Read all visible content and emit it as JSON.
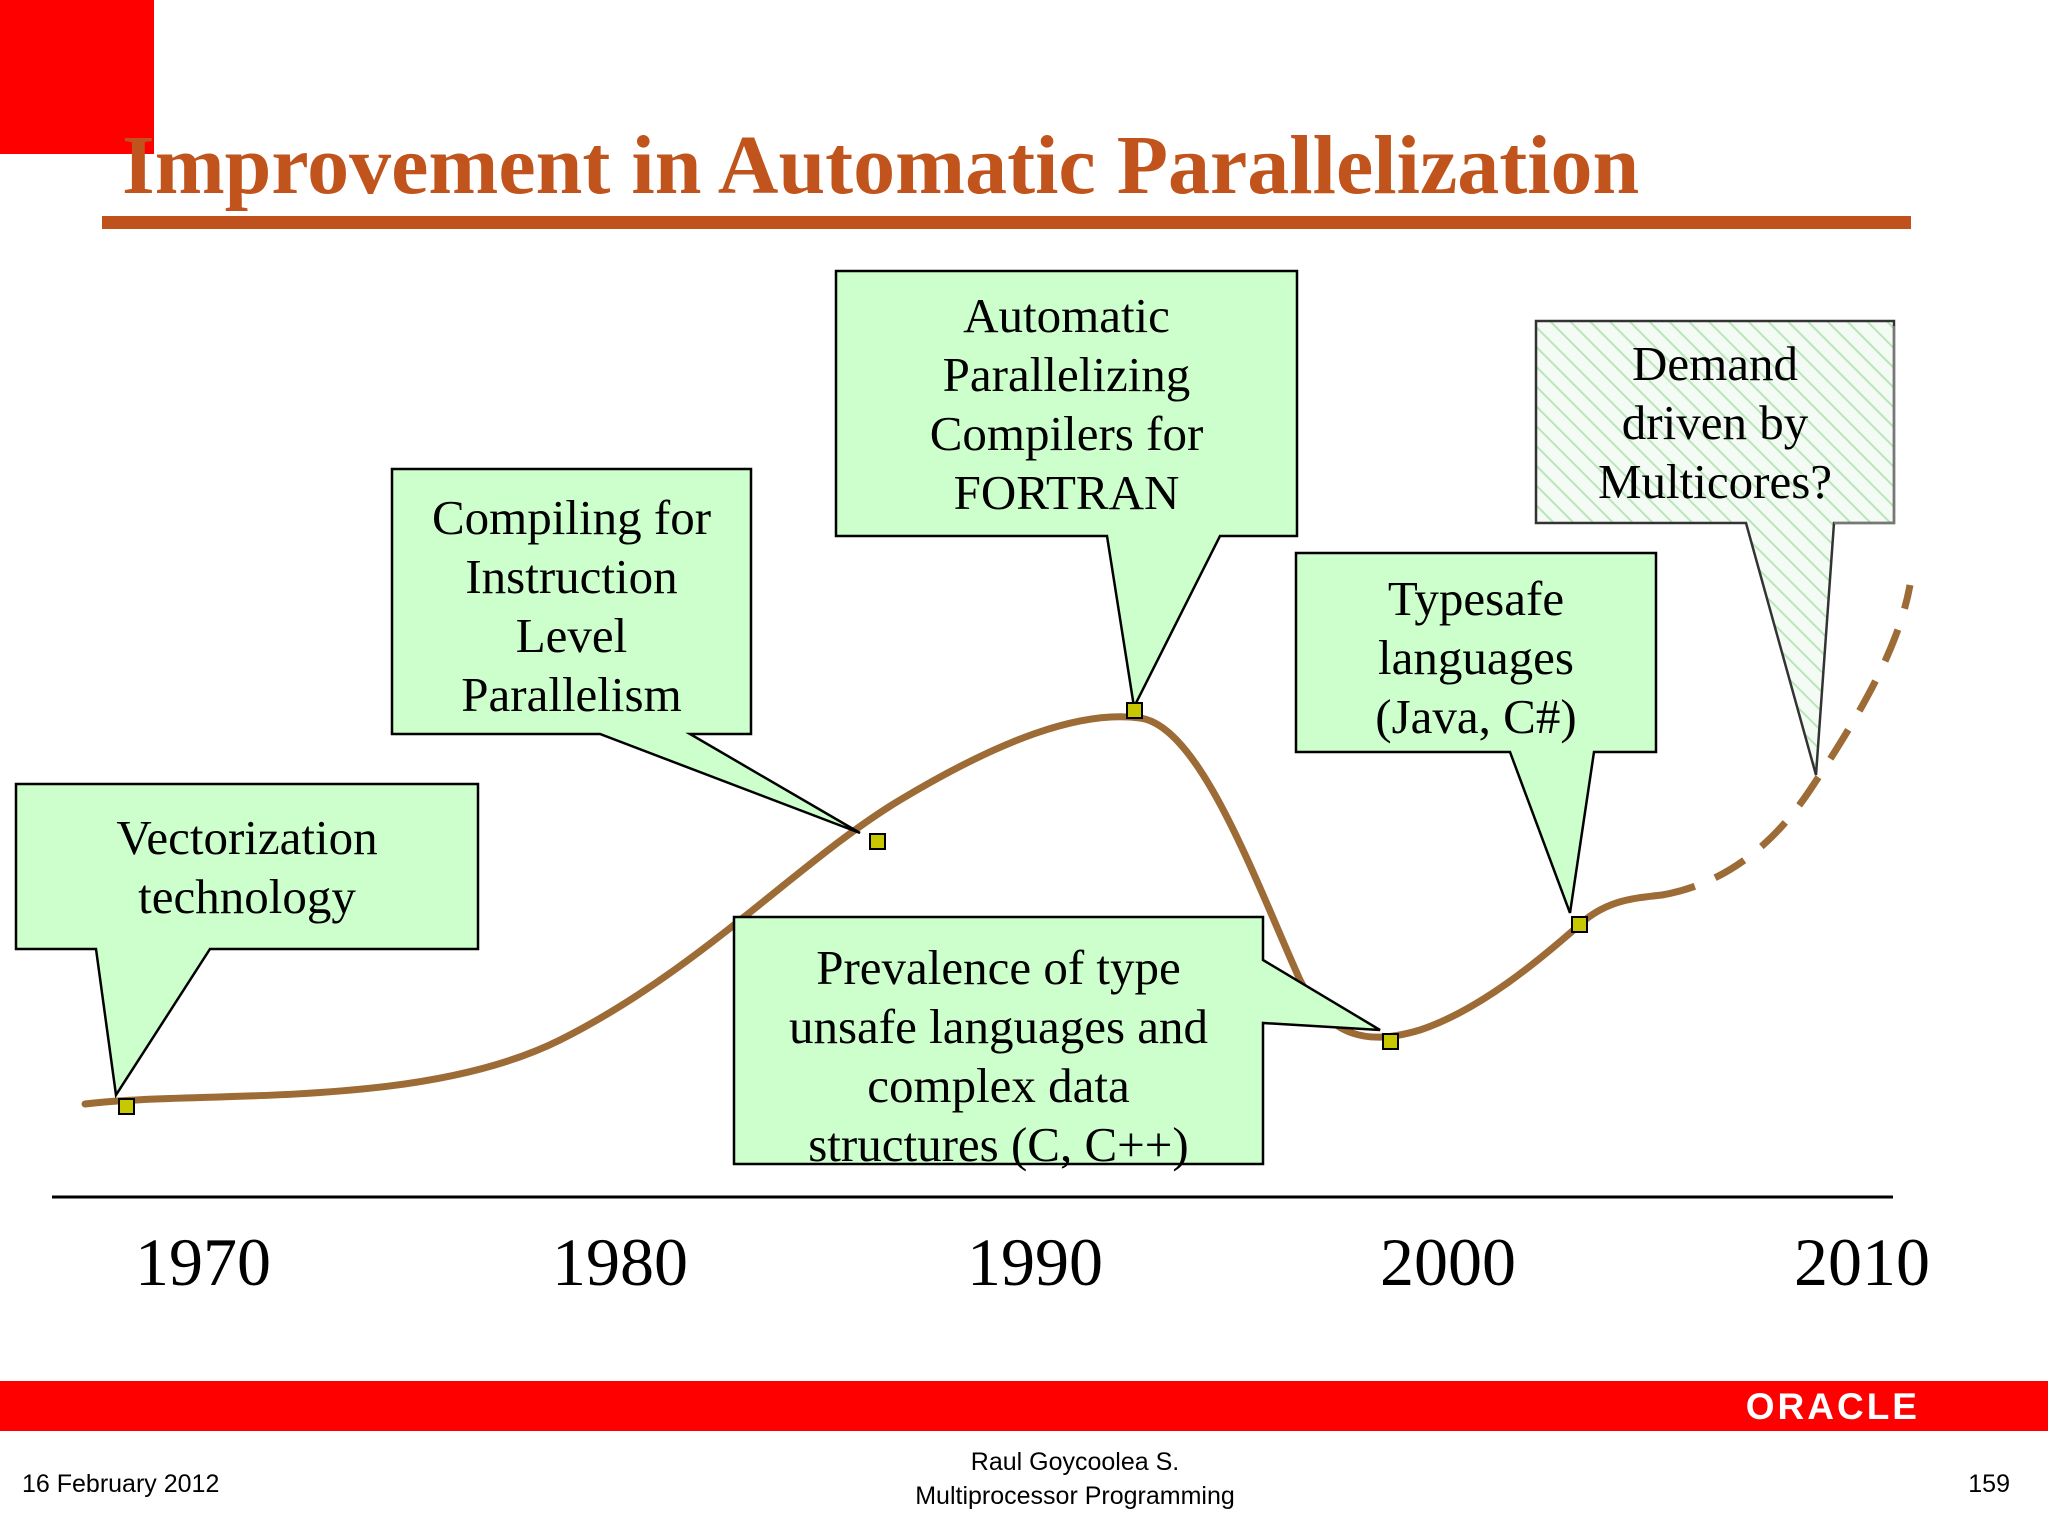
{
  "title": "Improvement in Automatic Parallelization",
  "callouts": {
    "vectorization": "Vectorization\ntechnology",
    "ilp": "Compiling for\nInstruction\nLevel\nParallelism",
    "fortran": "Automatic\nParallelizing\nCompilers for\nFORTRAN",
    "type_unsafe": "Prevalence of type\nunsafe languages and\ncomplex data\nstructures (C, C++)",
    "typesafe": "Typesafe\nlanguages\n(Java, C#)",
    "multicores": "Demand\ndriven by\nMulticores?"
  },
  "years": [
    "1970",
    "1980",
    "1990",
    "2000",
    "2010"
  ],
  "colors": {
    "title": "#c0541c",
    "curve": "#9c6b36",
    "callout_fill": "#ccffcc",
    "marker_fill": "#c8c800",
    "brand_red": "#ff0000"
  },
  "footer": {
    "logo": "ORACLE",
    "date": "16 February 2012",
    "author": "Raul Goycoolea S.",
    "course": "Multiprocessor Programming",
    "page": "159"
  }
}
